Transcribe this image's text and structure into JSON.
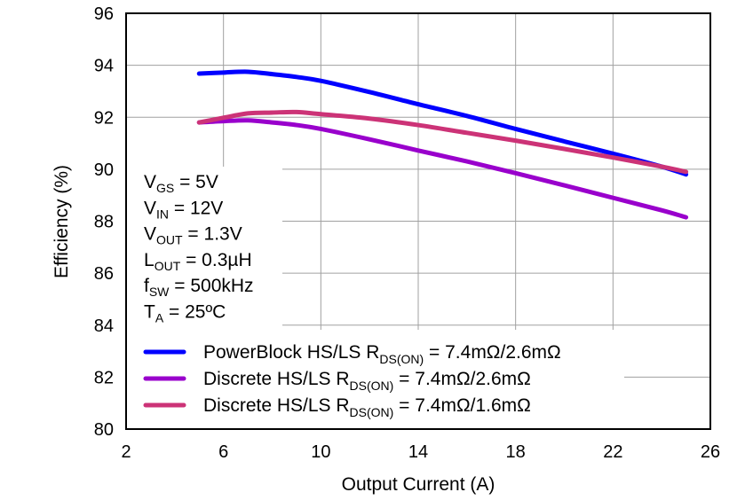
{
  "chart_data": {
    "type": "line",
    "xlabel": "Output Current (A)",
    "ylabel": "Efficiency (%)",
    "xlim": [
      2,
      26
    ],
    "ylim": [
      80,
      96
    ],
    "xticks": [
      2,
      6,
      10,
      14,
      18,
      22,
      26
    ],
    "yticks": [
      80,
      82,
      84,
      86,
      88,
      90,
      92,
      94,
      96
    ],
    "grid": true,
    "legend_position": "bottom-left",
    "conditions": [
      {
        "main": "V",
        "sub": "GS",
        "rest": " = 5V"
      },
      {
        "main": "V",
        "sub": "IN",
        "rest": " = 12V"
      },
      {
        "main": "V",
        "sub": "OUT",
        "rest": " = 1.3V"
      },
      {
        "main": "L",
        "sub": "OUT",
        "rest": " = 0.3µH"
      },
      {
        "main": "f",
        "sub": "SW",
        "rest": " = 500kHz"
      },
      {
        "main": "T",
        "sub": "A",
        "rest": " = 25ºC"
      }
    ],
    "series": [
      {
        "name": "PowerBlock  HS/LS R",
        "name_sub": "DS(ON)",
        "name_rest": " = 7.4mΩ/2.6mΩ",
        "color": "#0000FF",
        "x": [
          5,
          6,
          7,
          8,
          9,
          10,
          12,
          14,
          16,
          18,
          20,
          22,
          24,
          25
        ],
        "y": [
          93.68,
          93.72,
          93.75,
          93.66,
          93.55,
          93.4,
          92.97,
          92.5,
          92.05,
          91.55,
          91.07,
          90.6,
          90.1,
          89.8
        ]
      },
      {
        "name": "Discrete  HS/LS R",
        "name_sub": "DS(ON)",
        "name_rest": " = 7.4mΩ/2.6mΩ",
        "color": "#9900CC",
        "x": [
          5,
          6,
          7,
          8,
          9,
          10,
          12,
          14,
          16,
          18,
          20,
          22,
          24,
          25
        ],
        "y": [
          91.8,
          91.85,
          91.88,
          91.8,
          91.7,
          91.55,
          91.15,
          90.72,
          90.3,
          89.85,
          89.38,
          88.9,
          88.42,
          88.15
        ]
      },
      {
        "name": "Discrete  HS/LS R",
        "name_sub": "DS(ON)",
        "name_rest": " = 7.4mΩ/1.6mΩ",
        "color": "#CC3377",
        "x": [
          5,
          6,
          7,
          8,
          9,
          10,
          12,
          14,
          16,
          18,
          20,
          22,
          24,
          25
        ],
        "y": [
          91.8,
          91.98,
          92.15,
          92.18,
          92.2,
          92.12,
          91.95,
          91.7,
          91.4,
          91.1,
          90.78,
          90.45,
          90.1,
          89.9
        ]
      }
    ]
  }
}
